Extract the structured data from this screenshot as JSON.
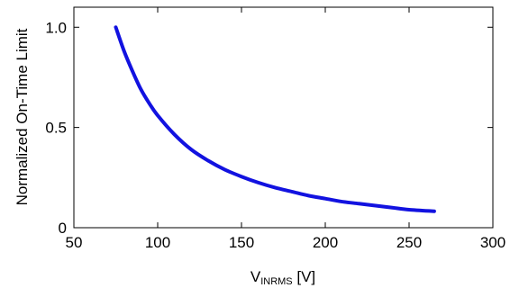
{
  "chart_data": {
    "type": "line",
    "title": "",
    "xlabel": {
      "main": "V",
      "subscript": "INRMS",
      "unit": " [V]"
    },
    "ylabel": "Normalized On-Time Limit",
    "xlim": [
      50,
      300
    ],
    "ylim": [
      0,
      1.1
    ],
    "xticks": [
      50,
      100,
      150,
      200,
      250,
      300
    ],
    "xtick_labels": [
      "50",
      "100",
      "150",
      "200",
      "250",
      "300"
    ],
    "yticks": [
      0,
      0.5,
      1.0
    ],
    "ytick_labels": [
      "0",
      "0.5",
      "1.0"
    ],
    "grid": false,
    "series": [
      {
        "color": "#1212e0",
        "x": [
          75,
          80,
          85,
          90,
          95,
          100,
          110,
          120,
          130,
          140,
          150,
          160,
          170,
          180,
          190,
          200,
          210,
          220,
          230,
          240,
          250,
          265
        ],
        "y": [
          1.0,
          0.88,
          0.78,
          0.69,
          0.62,
          0.56,
          0.465,
          0.39,
          0.335,
          0.29,
          0.255,
          0.225,
          0.2,
          0.18,
          0.16,
          0.145,
          0.13,
          0.12,
          0.11,
          0.1,
          0.09,
          0.082
        ]
      }
    ]
  }
}
